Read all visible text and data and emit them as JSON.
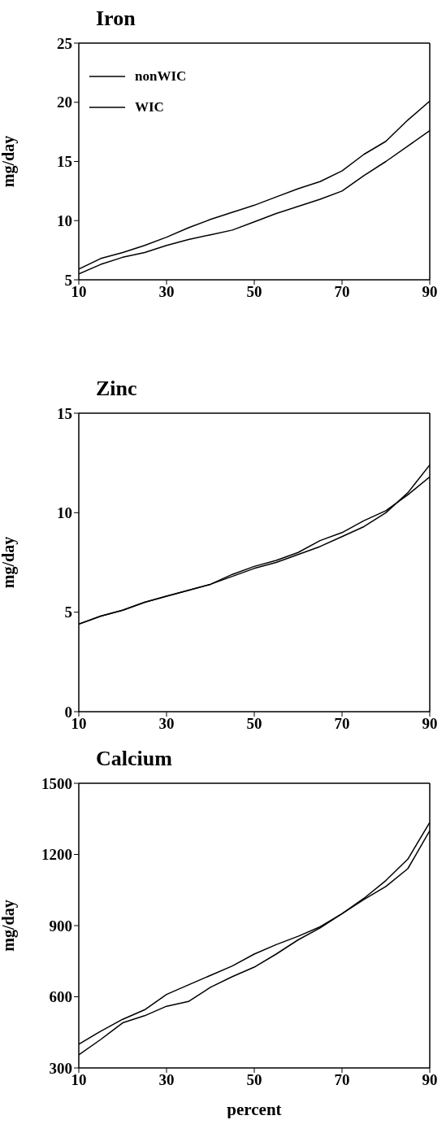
{
  "chart_data": [
    {
      "type": "line",
      "title": "Iron",
      "ylabel": "mg/day",
      "x": [
        10,
        15,
        20,
        25,
        30,
        35,
        40,
        45,
        50,
        55,
        60,
        65,
        70,
        75,
        80,
        85,
        90
      ],
      "xlim": [
        10,
        90
      ],
      "xticks": [
        10,
        30,
        50,
        70,
        90
      ],
      "ylim": [
        5,
        25
      ],
      "yticks": [
        5,
        10,
        15,
        20,
        25
      ],
      "grid": false,
      "legend": "top left",
      "marker": "none",
      "line_style": "solid",
      "series": [
        {
          "name": "nonWIC",
          "color": "#000000",
          "values": [
            5.9,
            6.8,
            7.3,
            7.9,
            8.6,
            9.4,
            10.1,
            10.7,
            11.3,
            12.0,
            12.7,
            13.3,
            14.2,
            15.6,
            16.7,
            18.5,
            20.1
          ]
        },
        {
          "name": "WIC",
          "color": "#000000",
          "values": [
            5.5,
            6.3,
            6.9,
            7.3,
            7.9,
            8.4,
            8.8,
            9.2,
            9.9,
            10.6,
            11.2,
            11.8,
            12.5,
            13.8,
            15.0,
            16.3,
            17.6
          ]
        }
      ]
    },
    {
      "type": "line",
      "title": "Zinc",
      "ylabel": "mg/day",
      "x": [
        10,
        15,
        20,
        25,
        30,
        35,
        40,
        45,
        50,
        55,
        60,
        65,
        70,
        75,
        80,
        85,
        90
      ],
      "xlim": [
        10,
        90
      ],
      "xticks": [
        10,
        30,
        50,
        70,
        90
      ],
      "ylim": [
        0,
        15
      ],
      "yticks": [
        0,
        5,
        10,
        15
      ],
      "grid": false,
      "marker": "none",
      "line_style": "solid",
      "series": [
        {
          "color": "#000000",
          "values": [
            4.4,
            4.8,
            5.1,
            5.5,
            5.8,
            6.1,
            6.4,
            6.9,
            7.3,
            7.6,
            8.0,
            8.6,
            9.0,
            9.6,
            10.1,
            10.9,
            11.8
          ]
        },
        {
          "color": "#000000",
          "values": [
            4.4,
            4.8,
            5.1,
            5.5,
            5.8,
            6.1,
            6.4,
            6.8,
            7.2,
            7.5,
            7.9,
            8.3,
            8.8,
            9.3,
            10.0,
            11.0,
            12.4
          ]
        }
      ]
    },
    {
      "type": "line",
      "title": "Calcium",
      "xlabel": "percent",
      "ylabel": "mg/day",
      "x": [
        10,
        15,
        20,
        25,
        30,
        35,
        40,
        45,
        50,
        55,
        60,
        65,
        70,
        75,
        80,
        85,
        90
      ],
      "xlim": [
        10,
        90
      ],
      "xticks": [
        10,
        30,
        50,
        70,
        90
      ],
      "ylim": [
        300,
        1500
      ],
      "yticks": [
        300,
        600,
        900,
        1200,
        1500
      ],
      "grid": false,
      "marker": "none",
      "line_style": "solid",
      "series": [
        {
          "color": "#000000",
          "values": [
            400,
            455,
            505,
            545,
            610,
            650,
            690,
            730,
            780,
            820,
            855,
            895,
            950,
            1010,
            1065,
            1140,
            1300
          ]
        },
        {
          "color": "#000000",
          "values": [
            355,
            420,
            490,
            520,
            560,
            580,
            640,
            685,
            725,
            780,
            840,
            890,
            950,
            1015,
            1090,
            1180,
            1335
          ]
        }
      ]
    }
  ]
}
